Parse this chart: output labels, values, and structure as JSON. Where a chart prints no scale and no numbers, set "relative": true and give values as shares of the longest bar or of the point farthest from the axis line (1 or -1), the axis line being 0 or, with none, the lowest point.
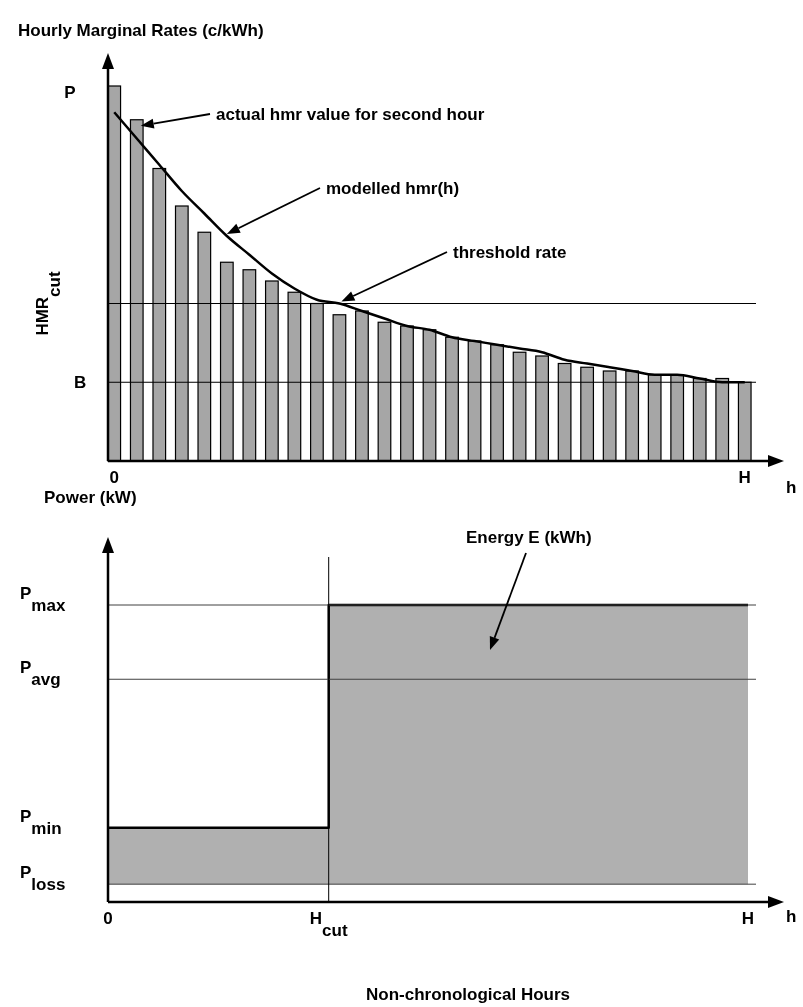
{
  "chart_data": [
    {
      "type": "bar",
      "relative": true,
      "ylabel": "Hourly Marginal Rates (c/kWh)",
      "categories": [
        "0",
        null,
        null,
        null,
        null,
        null,
        null,
        null,
        null,
        null,
        null,
        null,
        null,
        null,
        null,
        null,
        null,
        null,
        null,
        null,
        null,
        null,
        null,
        null,
        null,
        null,
        null,
        null,
        "H"
      ],
      "series": [
        {
          "type": "bar",
          "color": "#a6a6a6",
          "values": [
            1.0,
            0.91,
            0.78,
            0.68,
            0.61,
            0.53,
            0.51,
            0.48,
            0.45,
            0.42,
            0.39,
            0.4,
            0.37,
            0.36,
            0.35,
            0.33,
            0.32,
            0.31,
            0.29,
            0.28,
            0.26,
            0.25,
            0.24,
            0.24,
            0.23,
            0.23,
            0.22,
            0.22,
            0.21
          ]
        },
        {
          "type": "line",
          "color": "#000000",
          "values": [
            0.93,
            0.86,
            0.79,
            0.72,
            0.66,
            0.6,
            0.55,
            0.5,
            0.46,
            0.43,
            0.42,
            0.4,
            0.38,
            0.36,
            0.35,
            0.33,
            0.32,
            0.31,
            0.3,
            0.29,
            0.27,
            0.26,
            0.25,
            0.24,
            0.23,
            0.23,
            0.22,
            0.21,
            0.21
          ]
        }
      ],
      "ref_lines": [
        {
          "axis": "y",
          "value": 0.42,
          "label": "HMR$_{cut}$"
        },
        {
          "axis": "y",
          "value": 0.21,
          "label": "B"
        }
      ],
      "annotations": [
        "P",
        "h",
        "actual hmr value for second hour",
        "modelled hmr(h)",
        "threshold rate"
      ]
    },
    {
      "type": "step",
      "relative": true,
      "ylabel": "Power (kW)",
      "xlabel": "Non-chronological Hours",
      "categories": [
        "0",
        null,
        null,
        null,
        null,
        null,
        null,
        null,
        null,
        null,
        "H$_{cut}$",
        null,
        null,
        null,
        null,
        null,
        null,
        null,
        null,
        null,
        null,
        null,
        null,
        null,
        null,
        null,
        null,
        null,
        null,
        "H"
      ],
      "series": [
        {
          "color": "#000000",
          "values": [
            0.25,
            0.25,
            0.25,
            0.25,
            0.25,
            0.25,
            0.25,
            0.25,
            0.25,
            0.25,
            1,
            1,
            1,
            1,
            1,
            1,
            1,
            1,
            1,
            1,
            1,
            1,
            1,
            1,
            1,
            1,
            1,
            1,
            1,
            1
          ],
          "lower": [
            0.06,
            0.06,
            0.06,
            0.06,
            0.06,
            0.06,
            0.06,
            0.06,
            0.06,
            0.06,
            0.06,
            0.06,
            0.06,
            0.06,
            0.06,
            0.06,
            0.06,
            0.06,
            0.06,
            0.06,
            0.06,
            0.06,
            0.06,
            0.06,
            0.06,
            0.06,
            0.06,
            0.06,
            0.06,
            0.06
          ],
          "upper": [
            0.25,
            0.25,
            0.25,
            0.25,
            0.25,
            0.25,
            0.25,
            0.25,
            0.25,
            0.25,
            1,
            1,
            1,
            1,
            1,
            1,
            1,
            1,
            1,
            1,
            1,
            1,
            1,
            1,
            1,
            1,
            1,
            1,
            1,
            1
          ]
        }
      ],
      "ref_lines": [
        {
          "axis": "y",
          "value": 1,
          "label": "P$_{max}$",
          "color": "#404040"
        },
        {
          "axis": "y",
          "value": 0.75,
          "label": "P$_{avg}$",
          "color": "#404040"
        },
        {
          "axis": "y",
          "value": 0.06,
          "label": "P$_{loss}$",
          "color": "#404040"
        },
        {
          "axis": "x",
          "value": "H$_{cut}$"
        }
      ],
      "annotations": [
        "h",
        "Energy E (kWh)",
        "P$_{min}$"
      ]
    }
  ]
}
